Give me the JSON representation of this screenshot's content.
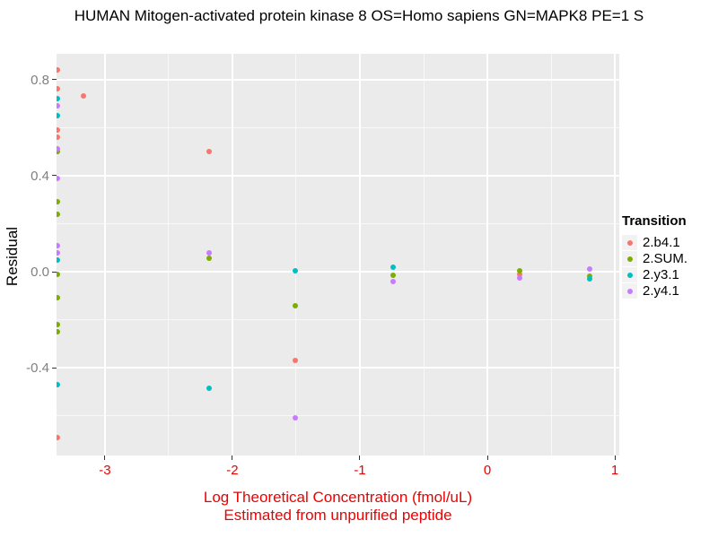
{
  "title": "HUMAN Mitogen-activated protein kinase 8 OS=Homo sapiens GN=MAPK8 PE=1 S",
  "colors": {
    "panel_background": "#EBEBEB",
    "gridline": "#FFFFFF",
    "axis_label_red": "#EE0000",
    "y_tick_label_gray": "#7F7F7F",
    "legend_key_background": "#F2F2F2"
  },
  "chart_data": {
    "type": "scatter",
    "title": "HUMAN Mitogen-activated protein kinase 8 OS=Homo sapiens GN=MAPK8 PE=1 S",
    "xlabel_line1": "Log Theoretical Concentration (fmol/uL)",
    "xlabel_line2": "Estimated from unpurified peptide",
    "ylabel": "Residual",
    "xlim": [
      -3.38,
      1.035
    ],
    "ylim": [
      -0.765,
      0.907
    ],
    "x_ticks": [
      -3,
      -2,
      -1,
      0,
      1
    ],
    "y_ticks": [
      -0.4,
      0.0,
      0.4,
      0.8
    ],
    "grid": true,
    "legend_position": "right",
    "legend_title": "Transition",
    "series": [
      {
        "name": "2.b4.1",
        "color": "#F8766D",
        "points": [
          [
            -3.375,
            0.84
          ],
          [
            -3.375,
            0.76
          ],
          [
            -3.375,
            0.59
          ],
          [
            -3.375,
            0.56
          ],
          [
            -3.375,
            -0.69
          ],
          [
            -3.17,
            0.73
          ],
          [
            -2.18,
            0.5
          ],
          [
            -1.51,
            -0.37
          ],
          [
            0.25,
            -0.01
          ]
        ]
      },
      {
        "name": "2.SUM.",
        "color": "#7CAE00",
        "points": [
          [
            -3.375,
            0.5
          ],
          [
            -3.375,
            0.29
          ],
          [
            -3.375,
            0.24
          ],
          [
            -3.375,
            -0.01
          ],
          [
            -3.375,
            -0.11
          ],
          [
            -3.375,
            -0.22
          ],
          [
            -3.375,
            -0.25
          ],
          [
            -2.18,
            0.055
          ],
          [
            -1.51,
            -0.14
          ],
          [
            -0.74,
            -0.015
          ],
          [
            0.25,
            0.005
          ],
          [
            0.8,
            -0.02
          ]
        ]
      },
      {
        "name": "2.y3.1",
        "color": "#00BFC4",
        "points": [
          [
            -3.375,
            0.72
          ],
          [
            -3.375,
            0.65
          ],
          [
            -3.375,
            0.05
          ],
          [
            -3.375,
            -0.47
          ],
          [
            -2.18,
            -0.485
          ],
          [
            -1.51,
            0.005
          ],
          [
            -0.74,
            0.02
          ],
          [
            0.8,
            -0.03
          ]
        ]
      },
      {
        "name": "2.y4.1",
        "color": "#C77CFF",
        "points": [
          [
            -3.375,
            0.69
          ],
          [
            -3.375,
            0.51
          ],
          [
            -3.375,
            0.39
          ],
          [
            -3.375,
            0.11
          ],
          [
            -3.375,
            0.08
          ],
          [
            -2.18,
            0.08
          ],
          [
            -1.51,
            -0.61
          ],
          [
            -0.74,
            -0.04
          ],
          [
            0.25,
            -0.025
          ],
          [
            0.8,
            0.01
          ]
        ]
      }
    ]
  }
}
